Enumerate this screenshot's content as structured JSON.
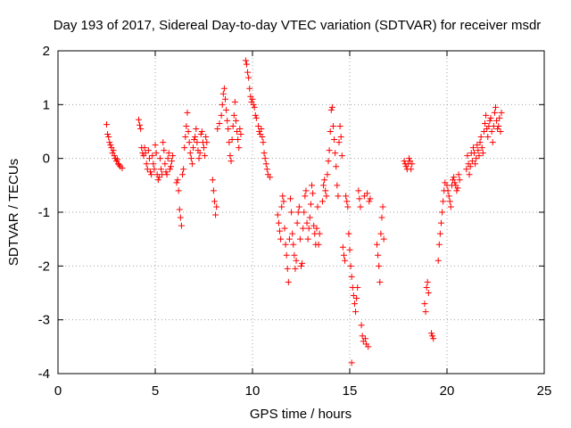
{
  "chart_data": {
    "type": "scatter",
    "title": "Day 193 of 2017, Sidereal Day-to-day VTEC variation (SDTVAR) for receiver msdr",
    "xlabel": "GPS time / hours",
    "ylabel": "SDTVAR / TECUs",
    "xlim": [
      0,
      25
    ],
    "ylim": [
      -4,
      2
    ],
    "xticks": [
      "0",
      "5",
      "10",
      "15",
      "20",
      "25"
    ],
    "yticks": [
      "-4",
      "-3",
      "-2",
      "-1",
      "0",
      "1",
      "2"
    ],
    "grid": true,
    "marker": "+",
    "color": "#ff0000",
    "series": [
      {
        "name": "SDTVAR msdr",
        "points": [
          [
            2.5,
            0.63
          ],
          [
            2.55,
            0.45
          ],
          [
            2.6,
            0.4
          ],
          [
            2.65,
            0.3
          ],
          [
            2.7,
            0.25
          ],
          [
            2.75,
            0.2
          ],
          [
            2.8,
            0.1
          ],
          [
            2.85,
            0.15
          ],
          [
            2.9,
            0.05
          ],
          [
            2.95,
            0.0
          ],
          [
            3.0,
            -0.05
          ],
          [
            3.05,
            -0.02
          ],
          [
            3.1,
            -0.1
          ],
          [
            3.15,
            -0.12
          ],
          [
            3.2,
            -0.15
          ],
          [
            3.3,
            -0.18
          ],
          [
            4.15,
            0.72
          ],
          [
            4.2,
            0.62
          ],
          [
            4.25,
            0.55
          ],
          [
            4.3,
            0.2
          ],
          [
            4.35,
            0.1
          ],
          [
            4.4,
            0.05
          ],
          [
            4.45,
            0.2
          ],
          [
            4.5,
            0.1
          ],
          [
            4.55,
            -0.1
          ],
          [
            4.6,
            -0.2
          ],
          [
            4.65,
            0.15
          ],
          [
            4.7,
            0.0
          ],
          [
            4.75,
            -0.25
          ],
          [
            4.8,
            -0.3
          ],
          [
            4.85,
            0.05
          ],
          [
            4.9,
            -0.1
          ],
          [
            4.95,
            -0.2
          ],
          [
            5.0,
            0.25
          ],
          [
            5.05,
            0.1
          ],
          [
            5.1,
            -0.3
          ],
          [
            5.15,
            -0.4
          ],
          [
            5.2,
            -0.35
          ],
          [
            5.25,
            0.0
          ],
          [
            5.3,
            -0.2
          ],
          [
            5.35,
            -0.3
          ],
          [
            5.4,
            0.3
          ],
          [
            5.45,
            0.15
          ],
          [
            5.5,
            -0.1
          ],
          [
            5.55,
            -0.25
          ],
          [
            5.6,
            -0.3
          ],
          [
            5.65,
            0.0
          ],
          [
            5.7,
            0.1
          ],
          [
            5.75,
            -0.2
          ],
          [
            5.8,
            -0.15
          ],
          [
            5.85,
            -0.05
          ],
          [
            5.9,
            0.05
          ],
          [
            6.1,
            -0.45
          ],
          [
            6.15,
            -0.4
          ],
          [
            6.2,
            -0.6
          ],
          [
            6.25,
            -0.95
          ],
          [
            6.3,
            -1.1
          ],
          [
            6.35,
            -1.25
          ],
          [
            6.4,
            -0.3
          ],
          [
            6.45,
            -0.2
          ],
          [
            6.5,
            0.2
          ],
          [
            6.55,
            0.4
          ],
          [
            6.6,
            0.6
          ],
          [
            6.65,
            0.85
          ],
          [
            6.7,
            0.5
          ],
          [
            6.75,
            0.3
          ],
          [
            6.8,
            0.1
          ],
          [
            6.85,
            0.0
          ],
          [
            6.9,
            -0.1
          ],
          [
            6.95,
            0.2
          ],
          [
            7.0,
            0.35
          ],
          [
            7.05,
            0.4
          ],
          [
            7.1,
            0.55
          ],
          [
            7.15,
            0.3
          ],
          [
            7.2,
            0.15
          ],
          [
            7.25,
            0.0
          ],
          [
            7.3,
            0.1
          ],
          [
            7.35,
            0.45
          ],
          [
            7.4,
            0.5
          ],
          [
            7.45,
            0.3
          ],
          [
            7.5,
            0.2
          ],
          [
            7.55,
            0.05
          ],
          [
            7.6,
            0.4
          ],
          [
            7.65,
            0.3
          ],
          [
            7.95,
            -0.4
          ],
          [
            8.0,
            -0.6
          ],
          [
            8.05,
            -0.8
          ],
          [
            8.1,
            -1.05
          ],
          [
            8.15,
            -0.9
          ],
          [
            8.2,
            0.55
          ],
          [
            8.3,
            0.65
          ],
          [
            8.4,
            0.8
          ],
          [
            8.45,
            1.0
          ],
          [
            8.5,
            1.2
          ],
          [
            8.55,
            1.3
          ],
          [
            8.6,
            1.1
          ],
          [
            8.65,
            0.9
          ],
          [
            8.7,
            0.7
          ],
          [
            8.75,
            0.55
          ],
          [
            8.8,
            0.3
          ],
          [
            8.85,
            0.05
          ],
          [
            8.9,
            -0.05
          ],
          [
            8.95,
            0.35
          ],
          [
            9.0,
            0.6
          ],
          [
            9.05,
            0.8
          ],
          [
            9.1,
            1.05
          ],
          [
            9.15,
            0.7
          ],
          [
            9.2,
            0.5
          ],
          [
            9.25,
            0.35
          ],
          [
            9.3,
            0.2
          ],
          [
            9.35,
            0.55
          ],
          [
            9.4,
            0.45
          ],
          [
            9.65,
            1.82
          ],
          [
            9.7,
            1.75
          ],
          [
            9.75,
            1.6
          ],
          [
            9.8,
            1.5
          ],
          [
            9.85,
            1.3
          ],
          [
            9.9,
            1.15
          ],
          [
            9.95,
            1.05
          ],
          [
            10.0,
            1.1
          ],
          [
            10.05,
            1.0
          ],
          [
            10.1,
            0.95
          ],
          [
            10.15,
            0.8
          ],
          [
            10.2,
            0.75
          ],
          [
            10.3,
            0.6
          ],
          [
            10.35,
            0.5
          ],
          [
            10.4,
            0.45
          ],
          [
            10.45,
            0.55
          ],
          [
            10.5,
            0.4
          ],
          [
            10.55,
            0.3
          ],
          [
            10.6,
            0.1
          ],
          [
            10.65,
            0.0
          ],
          [
            10.7,
            -0.1
          ],
          [
            10.75,
            -0.2
          ],
          [
            10.8,
            -0.3
          ],
          [
            10.9,
            -0.35
          ],
          [
            11.3,
            -1.05
          ],
          [
            11.35,
            -1.2
          ],
          [
            11.4,
            -1.35
          ],
          [
            11.45,
            -1.5
          ],
          [
            11.5,
            -0.9
          ],
          [
            11.55,
            -0.7
          ],
          [
            11.6,
            -0.8
          ],
          [
            11.65,
            -1.3
          ],
          [
            11.7,
            -1.6
          ],
          [
            11.75,
            -1.8
          ],
          [
            11.8,
            -2.05
          ],
          [
            11.85,
            -2.3
          ],
          [
            11.9,
            -1.5
          ],
          [
            11.95,
            -0.75
          ],
          [
            12.0,
            -1.0
          ],
          [
            12.05,
            -1.4
          ],
          [
            12.1,
            -1.6
          ],
          [
            12.15,
            -1.8
          ],
          [
            12.2,
            -2.05
          ],
          [
            12.25,
            -1.9
          ],
          [
            12.3,
            -1.2
          ],
          [
            12.35,
            -1.0
          ],
          [
            12.4,
            -0.9
          ],
          [
            12.45,
            -1.5
          ],
          [
            12.5,
            -2.0
          ],
          [
            12.55,
            -1.95
          ],
          [
            12.6,
            -1.3
          ],
          [
            12.65,
            -1.0
          ],
          [
            12.7,
            -0.7
          ],
          [
            12.75,
            -0.6
          ],
          [
            12.8,
            -1.2
          ],
          [
            12.85,
            -1.5
          ],
          [
            12.9,
            -1.3
          ],
          [
            12.95,
            -1.1
          ],
          [
            13.0,
            -0.85
          ],
          [
            13.05,
            -0.5
          ],
          [
            13.1,
            -0.65
          ],
          [
            13.15,
            -1.25
          ],
          [
            13.2,
            -1.4
          ],
          [
            13.25,
            -1.6
          ],
          [
            13.3,
            -1.3
          ],
          [
            13.35,
            -0.9
          ],
          [
            13.4,
            -1.6
          ],
          [
            13.45,
            -1.4
          ],
          [
            13.6,
            -0.8
          ],
          [
            13.65,
            -0.5
          ],
          [
            13.7,
            -0.4
          ],
          [
            13.75,
            -0.6
          ],
          [
            13.8,
            -0.7
          ],
          [
            13.85,
            -0.3
          ],
          [
            13.9,
            -0.05
          ],
          [
            13.95,
            0.15
          ],
          [
            14.0,
            0.5
          ],
          [
            14.05,
            0.9
          ],
          [
            14.1,
            0.95
          ],
          [
            14.15,
            0.6
          ],
          [
            14.2,
            0.35
          ],
          [
            14.25,
            0.1
          ],
          [
            14.3,
            -0.15
          ],
          [
            14.35,
            -0.5
          ],
          [
            14.4,
            -0.7
          ],
          [
            14.45,
            0.3
          ],
          [
            14.5,
            0.6
          ],
          [
            14.55,
            0.4
          ],
          [
            14.6,
            0.05
          ],
          [
            14.65,
            -1.65
          ],
          [
            14.7,
            -1.8
          ],
          [
            14.75,
            -1.9
          ],
          [
            14.8,
            -0.7
          ],
          [
            14.85,
            -0.8
          ],
          [
            14.9,
            -0.9
          ],
          [
            14.95,
            -1.4
          ],
          [
            15.0,
            -1.7
          ],
          [
            15.05,
            -2.0
          ],
          [
            15.1,
            -2.2
          ],
          [
            15.15,
            -2.4
          ],
          [
            15.2,
            -2.55
          ],
          [
            15.25,
            -2.7
          ],
          [
            15.3,
            -2.85
          ],
          [
            15.35,
            -2.6
          ],
          [
            15.4,
            -2.4
          ],
          [
            15.45,
            -0.6
          ],
          [
            15.5,
            -0.75
          ],
          [
            15.55,
            -0.9
          ],
          [
            15.1,
            -3.8
          ],
          [
            15.6,
            -3.1
          ],
          [
            15.65,
            -3.3
          ],
          [
            15.7,
            -3.4
          ],
          [
            15.75,
            -0.7
          ],
          [
            15.8,
            -3.35
          ],
          [
            15.85,
            -3.45
          ],
          [
            15.9,
            -0.65
          ],
          [
            15.95,
            -3.5
          ],
          [
            16.0,
            -0.8
          ],
          [
            16.05,
            -0.75
          ],
          [
            16.4,
            -1.6
          ],
          [
            16.45,
            -1.8
          ],
          [
            16.5,
            -2.0
          ],
          [
            16.55,
            -2.3
          ],
          [
            16.6,
            -1.4
          ],
          [
            16.65,
            -1.1
          ],
          [
            16.7,
            -0.9
          ],
          [
            16.75,
            -1.5
          ],
          [
            17.8,
            -0.05
          ],
          [
            17.85,
            -0.1
          ],
          [
            17.9,
            -0.15
          ],
          [
            17.95,
            -0.2
          ],
          [
            18.0,
            -0.1
          ],
          [
            18.05,
            0.0
          ],
          [
            18.1,
            -0.05
          ],
          [
            18.15,
            -0.2
          ],
          [
            18.2,
            -0.1
          ],
          [
            18.85,
            -2.7
          ],
          [
            18.9,
            -2.85
          ],
          [
            18.95,
            -2.4
          ],
          [
            19.0,
            -2.3
          ],
          [
            19.05,
            -2.5
          ],
          [
            19.2,
            -3.25
          ],
          [
            19.25,
            -3.3
          ],
          [
            19.3,
            -3.35
          ],
          [
            19.55,
            -1.9
          ],
          [
            19.6,
            -1.6
          ],
          [
            19.65,
            -1.4
          ],
          [
            19.7,
            -1.2
          ],
          [
            19.75,
            -1.0
          ],
          [
            19.8,
            -0.8
          ],
          [
            19.85,
            -0.6
          ],
          [
            19.9,
            -0.45
          ],
          [
            20.0,
            -0.5
          ],
          [
            20.05,
            -0.6
          ],
          [
            20.1,
            -0.7
          ],
          [
            20.15,
            -0.8
          ],
          [
            20.2,
            -0.9
          ],
          [
            20.25,
            -0.5
          ],
          [
            20.3,
            -0.4
          ],
          [
            20.35,
            -0.35
          ],
          [
            20.4,
            -0.45
          ],
          [
            20.45,
            -0.5
          ],
          [
            20.5,
            -0.6
          ],
          [
            20.55,
            -0.55
          ],
          [
            20.6,
            -0.3
          ],
          [
            20.65,
            -0.4
          ],
          [
            21.0,
            -0.2
          ],
          [
            21.05,
            0.05
          ],
          [
            21.1,
            -0.1
          ],
          [
            21.15,
            -0.3
          ],
          [
            21.2,
            -0.15
          ],
          [
            21.25,
            0.1
          ],
          [
            21.3,
            -0.05
          ],
          [
            21.35,
            0.2
          ],
          [
            21.4,
            0.1
          ],
          [
            21.45,
            -0.1
          ],
          [
            21.5,
            0.0
          ],
          [
            21.55,
            0.25
          ],
          [
            21.6,
            0.15
          ],
          [
            21.65,
            0.05
          ],
          [
            21.7,
            0.3
          ],
          [
            21.75,
            0.4
          ],
          [
            21.8,
            0.2
          ],
          [
            21.85,
            0.1
          ],
          [
            21.9,
            0.5
          ],
          [
            21.95,
            0.65
          ],
          [
            22.0,
            0.8
          ],
          [
            22.05,
            0.55
          ],
          [
            22.1,
            0.4
          ],
          [
            22.15,
            0.6
          ],
          [
            22.2,
            0.7
          ],
          [
            22.25,
            0.75
          ],
          [
            22.3,
            0.5
          ],
          [
            22.35,
            0.3
          ],
          [
            22.4,
            0.6
          ],
          [
            22.45,
            0.85
          ],
          [
            22.5,
            0.95
          ],
          [
            22.55,
            0.7
          ],
          [
            22.6,
            0.55
          ],
          [
            22.65,
            0.6
          ],
          [
            22.7,
            0.75
          ],
          [
            22.75,
            0.5
          ],
          [
            22.8,
            0.85
          ]
        ]
      }
    ]
  }
}
